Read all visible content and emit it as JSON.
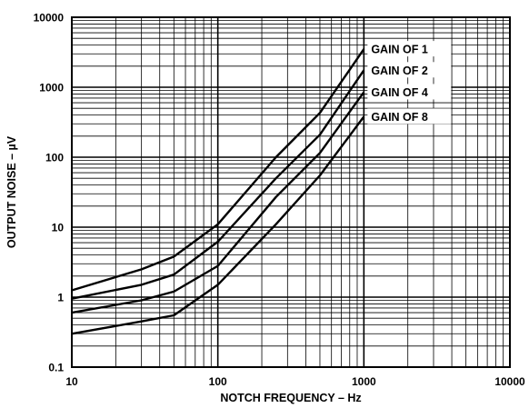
{
  "chart_data": {
    "type": "line",
    "title": "",
    "xlabel": "NOTCH FREQUENCY – Hz",
    "ylabel": "OUTPUT NOISE – µV",
    "xscale": "log",
    "yscale": "log",
    "xlim": [
      10,
      10000
    ],
    "ylim": [
      0.1,
      10000
    ],
    "grid": true,
    "x_tick_labels": [
      "10",
      "100",
      "1000",
      "10000"
    ],
    "y_tick_labels": [
      "0.1",
      "1",
      "10",
      "100",
      "1000",
      "10000"
    ],
    "legend_position": "top-right, inline labels",
    "series": [
      {
        "name": "GAIN OF 1",
        "x": [
          10,
          30,
          50,
          100,
          250,
          500,
          1000
        ],
        "y": [
          1.25,
          2.5,
          3.8,
          11,
          100,
          430,
          3500
        ]
      },
      {
        "name": "GAIN OF 2",
        "x": [
          10,
          30,
          50,
          100,
          250,
          500,
          1000
        ],
        "y": [
          0.95,
          1.5,
          2.1,
          6.2,
          50,
          210,
          1750
        ]
      },
      {
        "name": "GAIN OF 4",
        "x": [
          10,
          30,
          50,
          100,
          250,
          500,
          1000
        ],
        "y": [
          0.6,
          0.9,
          1.2,
          2.8,
          27,
          115,
          850
        ]
      },
      {
        "name": "GAIN OF 8",
        "x": [
          10,
          30,
          50,
          100,
          250,
          500,
          1000
        ],
        "y": [
          0.3,
          0.45,
          0.55,
          1.5,
          11,
          55,
          380
        ]
      }
    ]
  }
}
